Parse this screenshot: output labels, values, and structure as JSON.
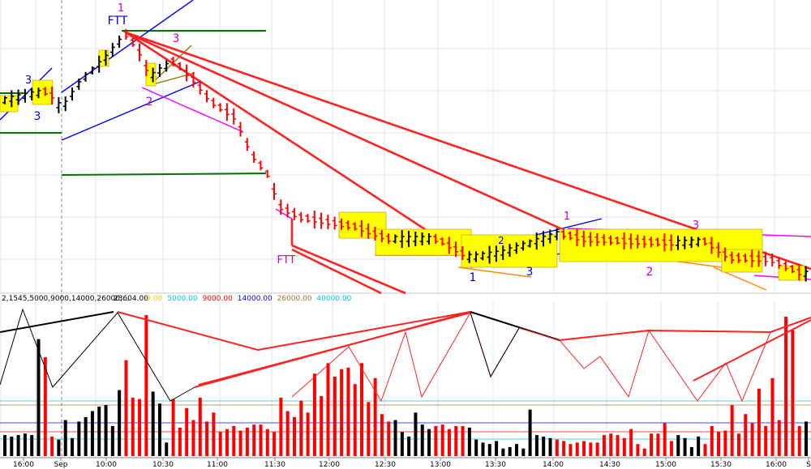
{
  "chart_data": [
    {
      "type": "bar",
      "panel": "price",
      "title": "",
      "xlabel": "",
      "ylabel": "",
      "grid": true,
      "annotations": [
        "1",
        "FTT",
        "3",
        "2",
        "3",
        "FTT",
        "3",
        "1",
        "3",
        "2",
        "1",
        "2",
        "3"
      ],
      "colors": {
        "up_bar": "#000000",
        "down_bar": "#ff0000",
        "highlight_box": "#ffff00",
        "trend_line": "#ff0000",
        "support_line": "#007700",
        "channel_line": "#0000ff",
        "magenta_line": "#ff00ff"
      }
    },
    {
      "type": "bar",
      "panel": "volume",
      "title": "",
      "header_text": "2,1545,5000,9000,14000,26000,...",
      "last_value": "23604.00",
      "levels": [
        {
          "label": "0.00",
          "color": "#e6c800"
        },
        {
          "label": "5000.00",
          "color": "#00c8c8"
        },
        {
          "label": "9000.00",
          "color": "#ff0000"
        },
        {
          "label": "14000.00",
          "color": "#0000ff"
        },
        {
          "label": "26000.00",
          "color": "#9a7a2a"
        },
        {
          "label": "40000.00",
          "color": "#00c8c8"
        }
      ],
      "x_tick_labels": [
        "16:00",
        "Sep",
        "10:00",
        "10:30",
        "11:00",
        "11:30",
        "12:00",
        "12:30",
        "13:00",
        "13:30",
        "14:00",
        "14:30",
        "15:00",
        "15:30",
        "16:00",
        "S"
      ],
      "values": [
        14,
        13,
        14,
        15,
        14,
        78,
        66,
        13,
        11,
        24,
        12,
        23,
        26,
        30,
        33,
        34,
        20,
        44,
        64,
        39,
        38,
        94,
        43,
        35,
        9,
        38,
        19,
        32,
        24,
        39,
        23,
        29,
        16,
        18,
        20,
        17,
        19,
        21,
        21,
        18,
        16,
        39,
        30,
        26,
        37,
        29,
        55,
        40,
        62,
        53,
        58,
        59,
        48,
        62,
        36,
        52,
        28,
        23,
        24,
        16,
        13,
        29,
        21,
        18,
        20,
        21,
        18,
        20,
        20,
        19,
        11,
        9,
        8,
        10,
        5,
        6,
        8,
        5,
        31,
        14,
        13,
        12,
        11,
        10,
        8,
        9,
        10,
        9,
        9,
        14,
        15,
        14,
        12,
        18,
        8,
        5,
        15,
        15,
        22,
        10,
        14,
        12,
        6,
        13,
        8,
        20,
        16,
        17,
        34,
        15,
        28,
        22,
        45,
        20,
        52,
        24,
        93,
        84,
        20,
        23
      ],
      "colors": {
        "up": "#000000",
        "down": "#ff0000",
        "zigzag_up": "#ff0000",
        "zigzag_down": "#000000"
      }
    }
  ]
}
